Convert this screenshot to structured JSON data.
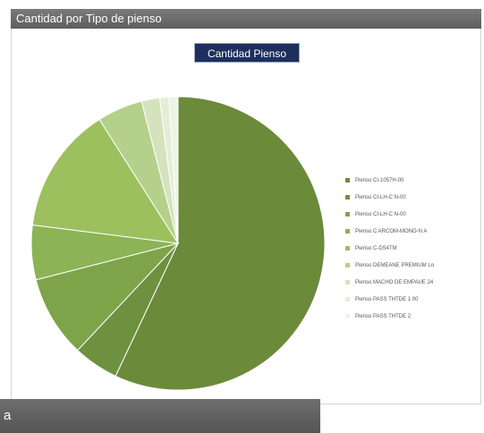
{
  "header": {
    "title": "Cantidad por Tipo de pienso"
  },
  "footer": {
    "label": "a"
  },
  "colors": {
    "slices": [
      "#6b8a3a",
      "#6e9140",
      "#7ea44a",
      "#8cb356",
      "#9cc05e",
      "#b5d08a",
      "#d4e3be",
      "#e4edd7",
      "#eef3e6"
    ]
  },
  "chart_data": {
    "type": "pie",
    "title": "Cantidad Pienso",
    "labels": [
      "Pienso CI-1057H-00",
      "Pienso CI-LH-C N-00",
      "Pienso CI-LH-C N-00",
      "Pienso C ARCOM-MONO-N A",
      "Pienso C-DS4TM",
      "Pienso DEMEANE PREMIUM Lo",
      "Pienso MACHO DE EMPAUE 24",
      "Pienso PASS THTDE 1 00",
      "Pienso PASS THTDE 2"
    ],
    "values": [
      57,
      5,
      9,
      6,
      14,
      5,
      2,
      1,
      1
    ],
    "legend_position": "right"
  }
}
